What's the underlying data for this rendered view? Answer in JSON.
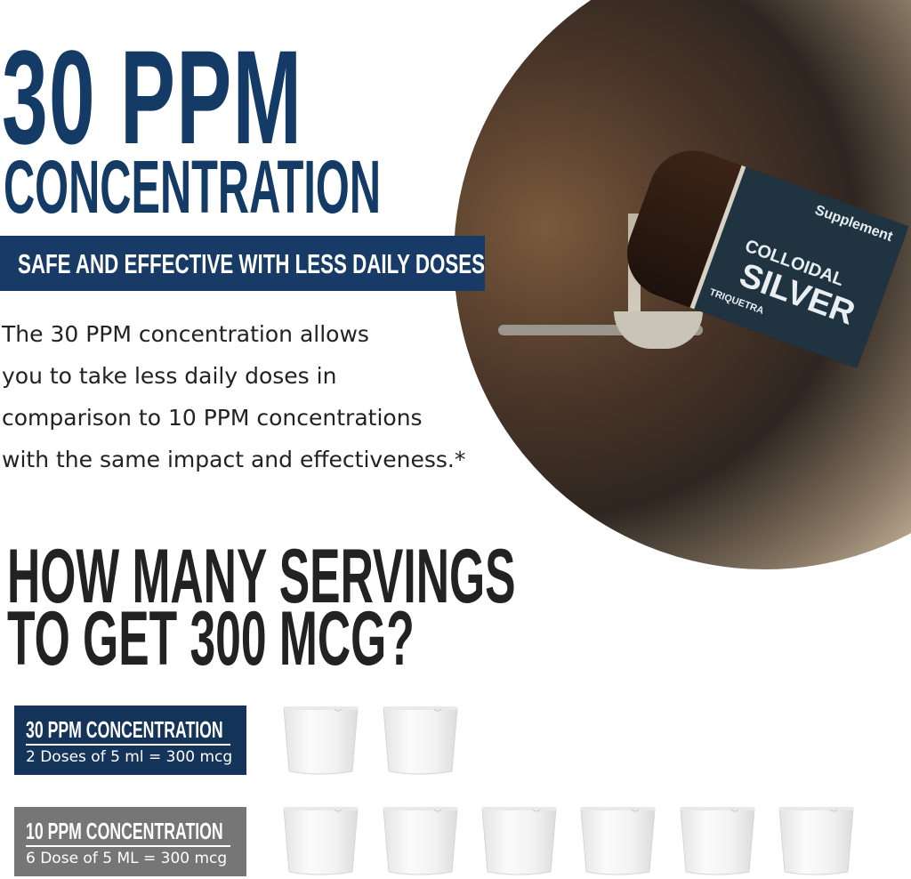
{
  "headline": {
    "big": "30 PPM",
    "sub": "CONCENTRATION"
  },
  "banner": "SAFE AND EFFECTIVE WITH LESS DAILY DOSES",
  "body_lines": [
    "The 30 PPM concentration allows",
    "you to take less daily doses in",
    "comparison to 10 PPM concentrations",
    "with the same impact and effectiveness.*"
  ],
  "photo": {
    "brand": "TRIQUETRA",
    "product_line1": "COLLOIDAL",
    "product_line2": "SILVER",
    "label_top": "Supplement"
  },
  "question": {
    "line1": "HOW MANY SERVINGS",
    "line2": "TO GET 300 MCG?"
  },
  "comparisons": [
    {
      "title": "30 PPM CONCENTRATION",
      "detail": "2 Doses of 5 ml = 300 mcg",
      "cups": 2,
      "color": "#143459"
    },
    {
      "title": "10 PPM CONCENTRATION",
      "detail": "6 Dose of 5 ML = 300 mcg",
      "cups": 6,
      "color": "#767676"
    }
  ],
  "colors": {
    "navy": "#143a66",
    "gray": "#767676",
    "text": "#222222"
  }
}
